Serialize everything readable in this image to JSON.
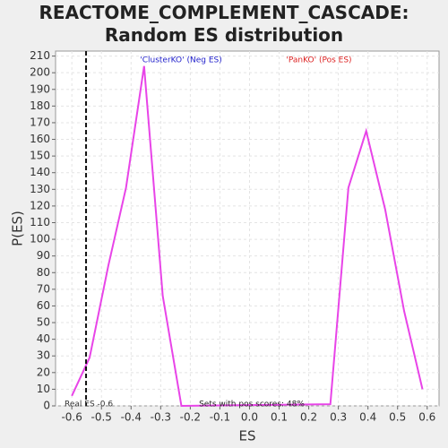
{
  "chart_data": {
    "type": "line",
    "title": "REACTOME_COMPLEMENT_CASCADE: Random ES distribution",
    "x_label": "ES",
    "y_label": "P(ES)",
    "x": [
      -0.6,
      -0.54,
      -0.477,
      -0.417,
      -0.356,
      -0.293,
      -0.23,
      0.273,
      0.334,
      0.394,
      0.458,
      0.522,
      0.584
    ],
    "series": [
      {
        "name": "P(ES)",
        "color": "#e844e8",
        "values": [
          6,
          29,
          84,
          131,
          204,
          66,
          0,
          1,
          131,
          165,
          118,
          57,
          10
        ]
      }
    ],
    "xlim": [
      -0.655,
      0.64
    ],
    "ylim": [
      0,
      213
    ],
    "xticks": [
      -0.6,
      -0.5,
      -0.4,
      -0.3,
      -0.2,
      -0.1,
      {
        "value": 0,
        "label": "0.0"
      },
      0.1,
      0.2,
      0.3,
      0.4,
      0.5,
      0.6
    ],
    "yticks": [
      0,
      10,
      20,
      30,
      40,
      50,
      60,
      70,
      80,
      90,
      100,
      110,
      120,
      130,
      140,
      150,
      160,
      170,
      180,
      190,
      200,
      210
    ],
    "grid": true,
    "reference_line": {
      "x": -0.552,
      "label": "Real ES -0.6"
    },
    "annotations": [
      {
        "text": "'ClusterKO' (Neg ES)",
        "color": "#2222cc"
      },
      {
        "text": "'PanKO' (Pos ES)",
        "color": "#dd2222"
      },
      {
        "text": "Sets with pos scores: 48%",
        "color": "#222222"
      }
    ]
  }
}
